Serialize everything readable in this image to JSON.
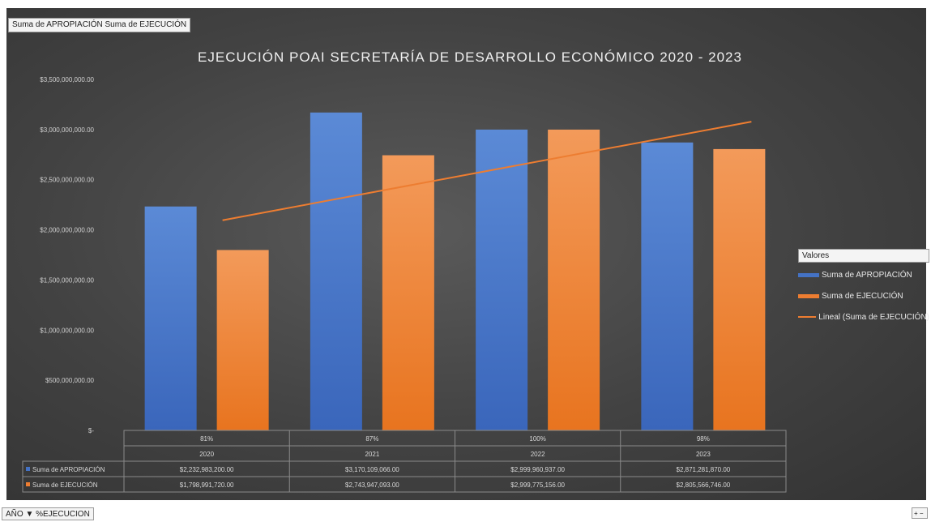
{
  "chart_data": {
    "type": "bar",
    "title": "EJECUCIÓN POAI SECRETARÍA DE DESARROLLO ECONÓMICO 2020 - 2023",
    "categories": [
      "2020",
      "2021",
      "2022",
      "2023"
    ],
    "category_percent_labels": [
      "81%",
      "87%",
      "100%",
      "98%"
    ],
    "series": [
      {
        "name": "Suma de APROPIACIÓN",
        "values": [
          2232983200,
          3170109066,
          2999960937,
          2871281870
        ],
        "table_values": [
          "$2,232,983,200.00",
          "$3,170,109,066.00",
          "$2,999,960,937.00",
          "$2,871,281,870.00"
        ],
        "color": "#4472c4"
      },
      {
        "name": "Suma de EJECUCIÓN",
        "values": [
          1798991720,
          2743947093,
          2999775156,
          2805566746
        ],
        "table_values": [
          "$1,798,991,720.00",
          "$2,743,947,093.00",
          "$2,999,775,156.00",
          "$2,805,566,746.00"
        ],
        "color": "#ed7d31"
      }
    ],
    "trendline": {
      "name": "Lineal (Suma de EJECUCIÓN)",
      "of_series": "Suma de EJECUCIÓN",
      "color": "#ed7d31"
    },
    "ylim": [
      0,
      3500000000
    ],
    "y_ticks": [
      0,
      500000000,
      1000000000,
      1500000000,
      2000000000,
      2500000000,
      3000000000,
      3500000000
    ],
    "y_tick_labels": [
      "$-",
      "$500,000,000.00",
      "$1,000,000,000.00",
      "$1,500,000,000.00",
      "$2,000,000,000.00",
      "$2,500,000,000.00",
      "$3,000,000,000.00",
      "$3,500,000,000.00"
    ],
    "grid": false,
    "legend_position": "right",
    "data_table": true
  },
  "pivot": {
    "values_field_button": "Suma de APROPIACIÓN  Suma de EJECUCIÓN",
    "axis_field_button": "AÑO  ▼ %EJECUCION",
    "corner_button": "+ −"
  },
  "legend": {
    "title": "Valores",
    "items": [
      "Suma de APROPIACIÓN",
      "Suma de EJECUCIÓN",
      "Lineal (Suma de EJECUCIÓN)"
    ]
  }
}
